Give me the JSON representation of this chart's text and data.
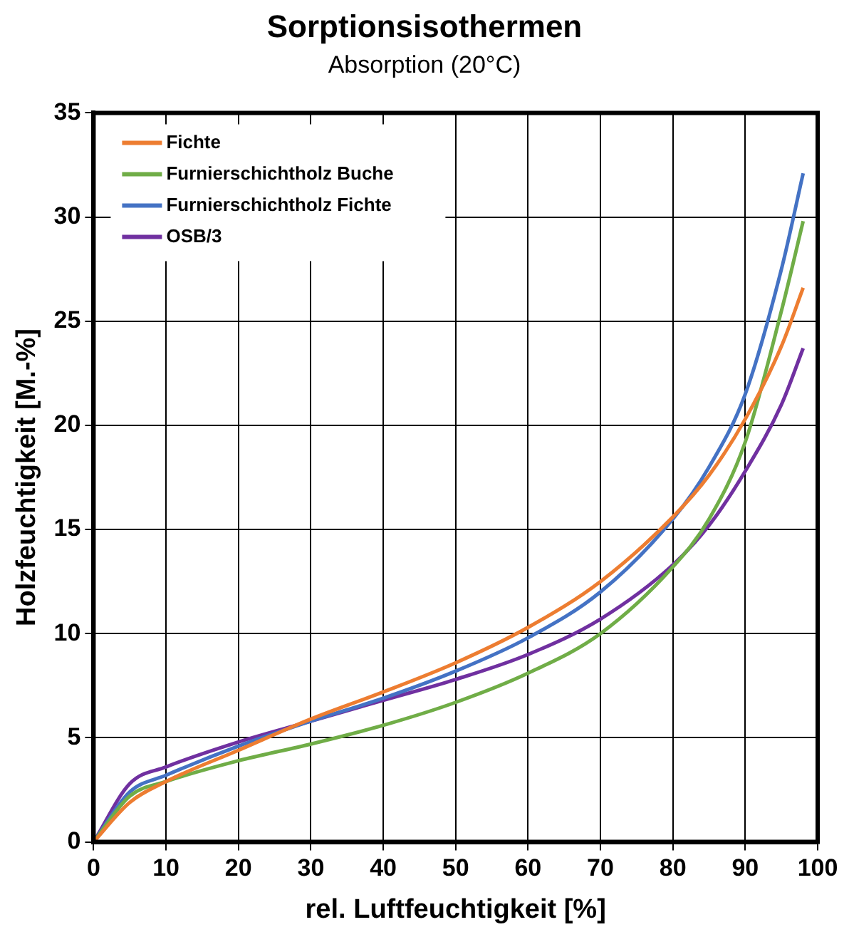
{
  "chart_data": {
    "type": "line",
    "title": "Sorptionsisothermen",
    "subtitle": "Absorption (20°C)",
    "xlabel": "rel. Luftfeuchtigkeit [%]",
    "ylabel": "Holzfeuchtigkeit [M.-%]",
    "x": [
      0,
      5,
      10,
      20,
      30,
      40,
      50,
      60,
      70,
      80,
      85,
      90,
      95,
      98
    ],
    "series": [
      {
        "name": "Fichte",
        "color": "#ed7d31",
        "values": [
          0,
          1.9,
          2.9,
          4.4,
          5.9,
          7.2,
          8.6,
          10.3,
          12.5,
          15.6,
          17.6,
          20.3,
          23.8,
          26.6
        ]
      },
      {
        "name": "Furnierschichtholz Buche",
        "color": "#70ad47",
        "values": [
          0,
          2.2,
          2.9,
          3.9,
          4.7,
          5.6,
          6.7,
          8.1,
          10.0,
          13.2,
          15.5,
          19.2,
          25.5,
          29.8
        ]
      },
      {
        "name": "Furnierschichtholz Fichte",
        "color": "#4472c4",
        "values": [
          0,
          2.4,
          3.2,
          4.6,
          5.8,
          6.9,
          8.2,
          9.8,
          12.0,
          15.5,
          18.0,
          21.5,
          27.5,
          32.1
        ]
      },
      {
        "name": "OSB/3",
        "color": "#7030a0",
        "values": [
          0,
          2.8,
          3.6,
          4.8,
          5.8,
          6.8,
          7.8,
          9.0,
          10.7,
          13.3,
          15.2,
          17.8,
          21.0,
          23.7
        ]
      }
    ],
    "xlim": [
      0,
      100
    ],
    "xticks": [
      0,
      10,
      20,
      30,
      40,
      50,
      60,
      70,
      80,
      90,
      100
    ],
    "ylim": [
      0,
      35
    ],
    "yticks": [
      0,
      5,
      10,
      15,
      20,
      25,
      30,
      35
    ],
    "grid": true,
    "legend": "top left",
    "marker": "none",
    "line_style": "solid"
  }
}
